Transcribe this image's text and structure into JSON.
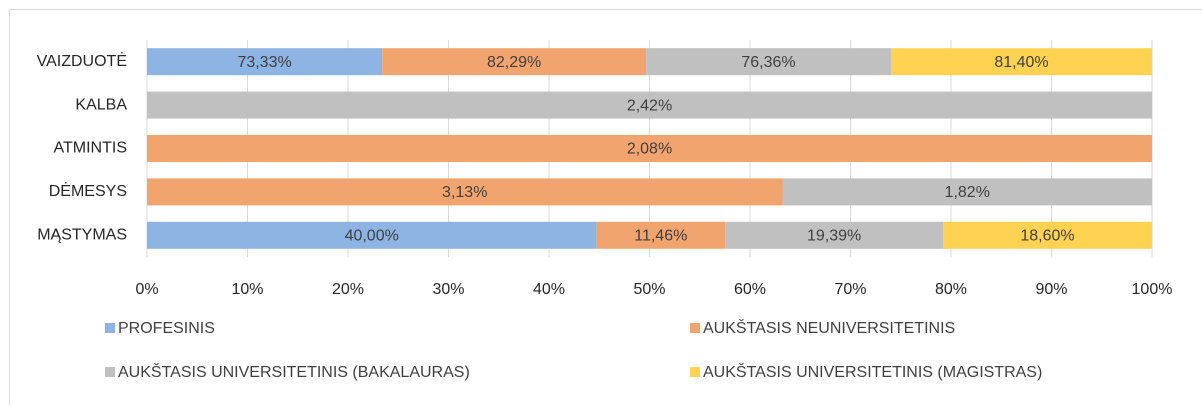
{
  "chart_data": {
    "type": "bar",
    "orientation": "horizontal",
    "stacked": "percent",
    "categories": [
      "VAIZDUOTĖ",
      "KALBA",
      "ATMINTIS",
      "DĖMESYS",
      "MĄSTYMAS"
    ],
    "series": [
      {
        "name": "PROFESINIS",
        "color": "#8db4e2",
        "values": [
          73.33,
          null,
          null,
          null,
          40.0
        ],
        "value_labels": [
          "73,33%",
          null,
          null,
          null,
          "40,00%"
        ]
      },
      {
        "name": "AUKŠTASIS NEUNIVERSITETINIS",
        "color": "#f2a46f",
        "values": [
          82.29,
          null,
          2.08,
          3.13,
          11.46
        ],
        "value_labels": [
          "82,29%",
          null,
          "2,08%",
          "3,13%",
          "11,46%"
        ]
      },
      {
        "name": "AUKŠTASIS UNIVERSITETINIS (BAKALAURAS)",
        "color": "#c0c0c0",
        "values": [
          76.36,
          2.42,
          null,
          1.82,
          19.39
        ],
        "value_labels": [
          "76,36%",
          "2,42%",
          null,
          "1,82%",
          "19,39%"
        ]
      },
      {
        "name": "AUKŠTASIS UNIVERSITETINIS (MAGISTRAS)",
        "color": "#ffd351",
        "values": [
          81.4,
          null,
          null,
          null,
          18.6
        ],
        "value_labels": [
          "81,40%",
          null,
          null,
          null,
          "18,60%"
        ]
      }
    ],
    "xlim": [
      0,
      100
    ],
    "xticks": [
      {
        "value": 0,
        "label": "0%"
      },
      {
        "value": 10,
        "label": "10%"
      },
      {
        "value": 20,
        "label": "20%"
      },
      {
        "value": 30,
        "label": "30%"
      },
      {
        "value": 40,
        "label": "40%"
      },
      {
        "value": 50,
        "label": "50%"
      },
      {
        "value": 60,
        "label": "60%"
      },
      {
        "value": 70,
        "label": "70%"
      },
      {
        "value": 80,
        "label": "80%"
      },
      {
        "value": 90,
        "label": "90%"
      },
      {
        "value": 100,
        "label": "100%"
      }
    ],
    "grid": true,
    "legend": "bottom"
  }
}
